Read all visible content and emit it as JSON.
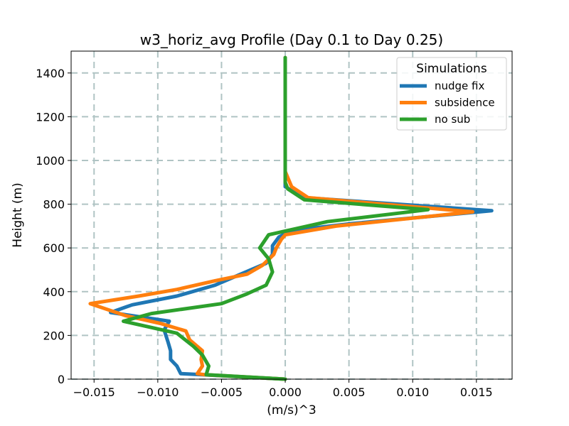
{
  "chart_data": {
    "type": "line",
    "title": "w3_horiz_avg Profile (Day 0.1 to Day 0.25)",
    "xlabel": "(m/s)^3",
    "ylabel": "Height (m)",
    "xlim": [
      -0.0168,
      0.0178
    ],
    "ylim": [
      0,
      1500
    ],
    "grid": true,
    "x_ticks": [
      -0.015,
      -0.01,
      -0.005,
      0.0,
      0.005,
      0.01,
      0.015
    ],
    "x_tick_labels": [
      "−0.015",
      "−0.010",
      "−0.005",
      "0.000",
      "0.005",
      "0.010",
      "0.015"
    ],
    "y_ticks": [
      0,
      200,
      400,
      600,
      800,
      1000,
      1200,
      1400
    ],
    "y_tick_labels": [
      "0",
      "200",
      "400",
      "600",
      "800",
      "1000",
      "1200",
      "1400"
    ],
    "legend": {
      "title": "Simulations",
      "placement": "top-right",
      "entries": [
        "nudge fix",
        "subsidence",
        "no sub"
      ]
    },
    "series": [
      {
        "name": "nudge fix",
        "color": "#1f77b4",
        "points": [
          [
            0.0,
            0
          ],
          [
            -0.0065,
            20
          ],
          [
            -0.0082,
            25
          ],
          [
            -0.0085,
            60
          ],
          [
            -0.009,
            90
          ],
          [
            -0.009,
            130
          ],
          [
            -0.0092,
            170
          ],
          [
            -0.0095,
            225
          ],
          [
            -0.0091,
            265
          ],
          [
            -0.0137,
            305
          ],
          [
            -0.0125,
            330
          ],
          [
            -0.012,
            340
          ],
          [
            -0.0085,
            380
          ],
          [
            -0.0055,
            430
          ],
          [
            -0.0035,
            480
          ],
          [
            -0.0015,
            530
          ],
          [
            -0.001,
            570
          ],
          [
            -0.001,
            610
          ],
          [
            -0.0005,
            650
          ],
          [
            0.0005,
            680
          ],
          [
            0.005,
            710
          ],
          [
            0.0162,
            770
          ],
          [
            0.0015,
            830
          ],
          [
            0.0,
            880
          ],
          [
            0.0,
            940
          ],
          [
            0.0,
            1000
          ],
          [
            0.0,
            1100
          ],
          [
            0.0,
            1200
          ],
          [
            0.0,
            1300
          ],
          [
            0.0,
            1400
          ],
          [
            0.0,
            1470
          ]
        ]
      },
      {
        "name": "subsidence",
        "color": "#ff7f0e",
        "points": [
          [
            0.0,
            0
          ],
          [
            -0.0063,
            20
          ],
          [
            -0.0069,
            25
          ],
          [
            -0.0065,
            60
          ],
          [
            -0.0066,
            90
          ],
          [
            -0.0065,
            130
          ],
          [
            -0.0075,
            180
          ],
          [
            -0.0078,
            220
          ],
          [
            -0.0098,
            255
          ],
          [
            -0.0125,
            290
          ],
          [
            -0.0153,
            345
          ],
          [
            -0.0115,
            380
          ],
          [
            -0.0085,
            410
          ],
          [
            -0.0055,
            450
          ],
          [
            -0.003,
            480
          ],
          [
            -0.0018,
            520
          ],
          [
            -0.0009,
            570
          ],
          [
            -0.0007,
            600
          ],
          [
            -0.0003,
            640
          ],
          [
            0.0,
            660
          ],
          [
            0.004,
            700
          ],
          [
            0.0147,
            765
          ],
          [
            0.0018,
            830
          ],
          [
            0.0005,
            880
          ],
          [
            0.0,
            950
          ],
          [
            0.0,
            1000
          ],
          [
            0.0,
            1100
          ],
          [
            0.0,
            1200
          ],
          [
            0.0,
            1300
          ],
          [
            0.0,
            1400
          ],
          [
            0.0,
            1470
          ]
        ]
      },
      {
        "name": "no sub",
        "color": "#2ca02c",
        "points": [
          [
            0.0,
            0
          ],
          [
            -0.0062,
            20
          ],
          [
            -0.006,
            60
          ],
          [
            -0.0065,
            110
          ],
          [
            -0.0072,
            150
          ],
          [
            -0.0085,
            210
          ],
          [
            -0.0127,
            265
          ],
          [
            -0.0105,
            300
          ],
          [
            -0.005,
            345
          ],
          [
            -0.003,
            390
          ],
          [
            -0.0015,
            430
          ],
          [
            -0.001,
            490
          ],
          [
            -0.0013,
            550
          ],
          [
            -0.002,
            600
          ],
          [
            -0.0013,
            660
          ],
          [
            0.0033,
            720
          ],
          [
            0.0112,
            775
          ],
          [
            0.0015,
            820
          ],
          [
            0.0002,
            870
          ],
          [
            0.0,
            900
          ],
          [
            0.0,
            950
          ],
          [
            0.0,
            1000
          ],
          [
            0.0,
            1100
          ],
          [
            0.0,
            1200
          ],
          [
            0.0,
            1300
          ],
          [
            0.0,
            1400
          ],
          [
            0.0,
            1470
          ]
        ]
      }
    ]
  }
}
